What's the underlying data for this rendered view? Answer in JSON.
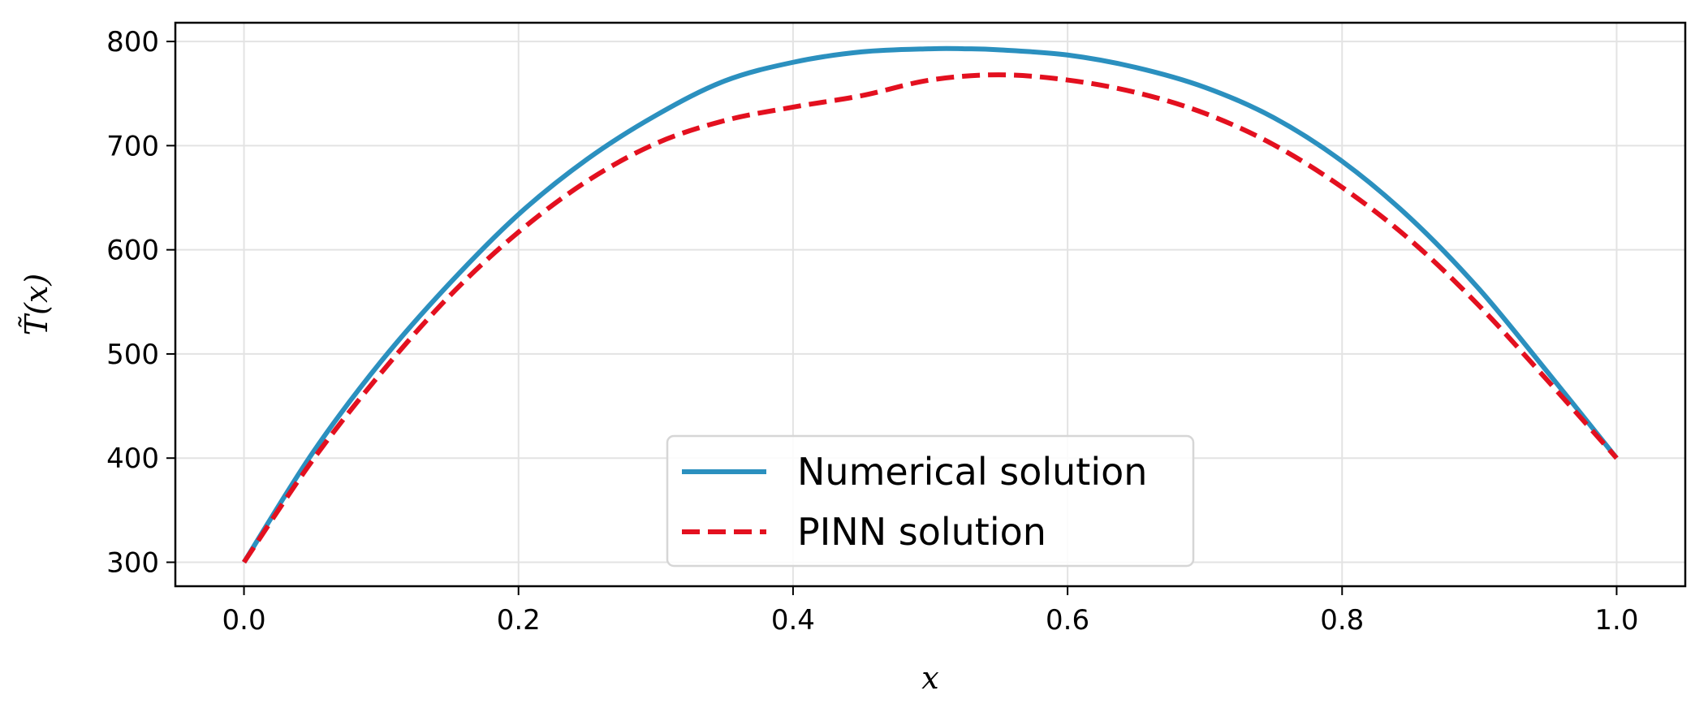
{
  "chart_data": {
    "type": "line",
    "title": "",
    "xlabel": "x",
    "ylabel": "T̃(x)",
    "xlim": [
      -0.05,
      1.05
    ],
    "ylim": [
      277,
      818
    ],
    "xticks": [
      0.0,
      0.2,
      0.4,
      0.6,
      0.8,
      1.0
    ],
    "xtick_labels": [
      "0.0",
      "0.2",
      "0.4",
      "0.6",
      "0.8",
      "1.0"
    ],
    "yticks": [
      300,
      400,
      500,
      600,
      700,
      800
    ],
    "ytick_labels": [
      "300",
      "400",
      "500",
      "600",
      "700",
      "800"
    ],
    "grid": true,
    "legend_position": "lower-center",
    "series": [
      {
        "name": "Numerical solution",
        "style": "solid",
        "color": "#2b90bf",
        "x": [
          0.0,
          0.05,
          0.1,
          0.15,
          0.2,
          0.25,
          0.3,
          0.35,
          0.4,
          0.45,
          0.5,
          0.525,
          0.55,
          0.6,
          0.65,
          0.7,
          0.75,
          0.8,
          0.85,
          0.9,
          0.95,
          1.0
        ],
        "y": [
          300,
          405,
          493,
          568,
          634,
          687,
          729,
          762,
          780,
          790,
          793,
          793,
          792,
          787,
          775,
          756,
          727,
          685,
          630,
          562,
          482,
          400
        ]
      },
      {
        "name": "PINN solution",
        "style": "dashed",
        "color": "#e3101f",
        "x": [
          0.0,
          0.05,
          0.1,
          0.15,
          0.2,
          0.25,
          0.3,
          0.35,
          0.4,
          0.45,
          0.5,
          0.55,
          0.6,
          0.65,
          0.7,
          0.75,
          0.8,
          0.85,
          0.9,
          0.95,
          1.0
        ],
        "y": [
          300,
          398,
          482,
          556,
          617,
          666,
          702,
          724,
          737,
          748,
          763,
          768,
          763,
          751,
          731,
          701,
          660,
          609,
          546,
          474,
          400
        ]
      }
    ]
  }
}
